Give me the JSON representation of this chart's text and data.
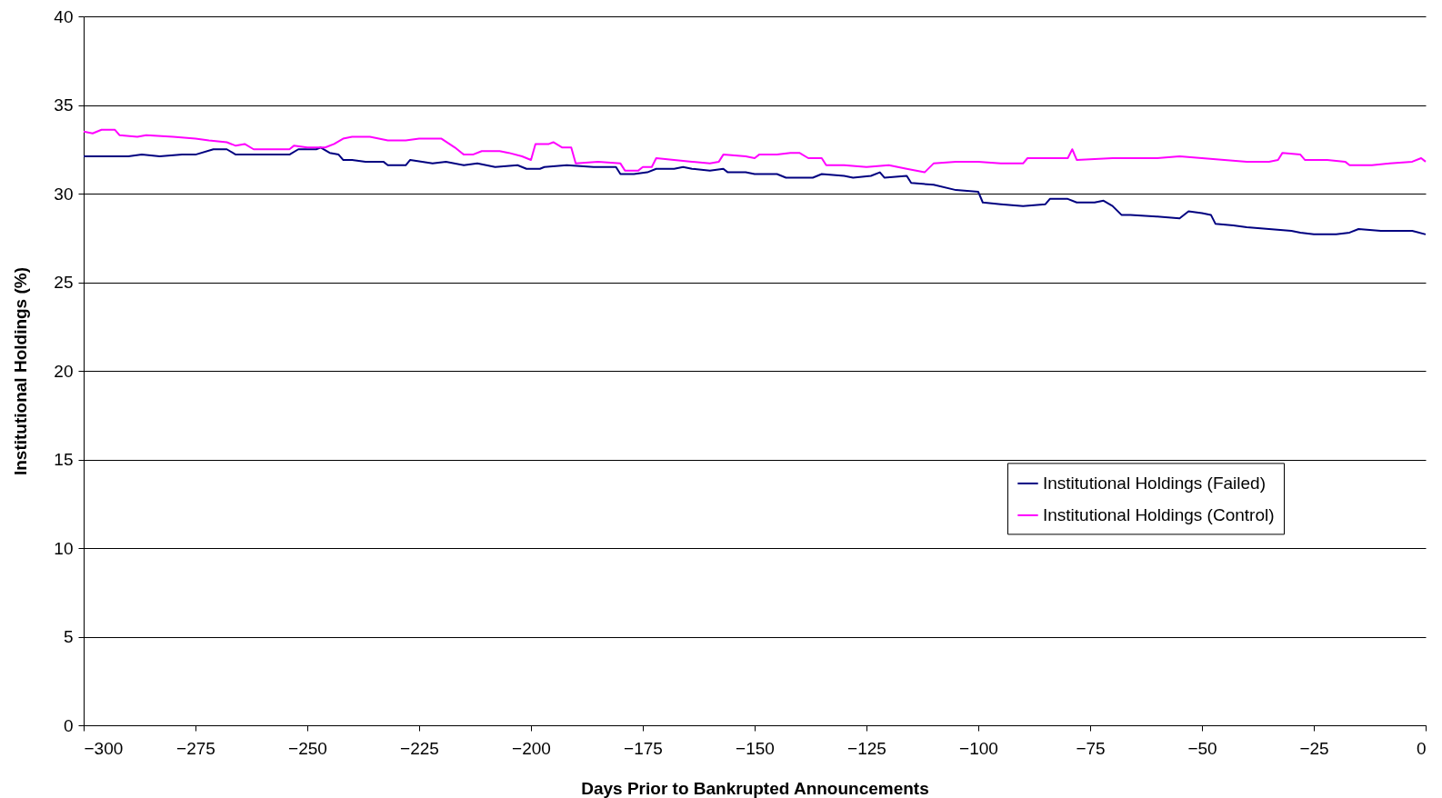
{
  "chart_data": {
    "type": "line",
    "xlabel": "Days Prior to Bankrupted Announcements",
    "ylabel": "Institutional Holdings (%)",
    "xlim": [
      -300,
      0
    ],
    "xticks": [
      -300,
      -275,
      -250,
      -225,
      -200,
      -175,
      -150,
      -125,
      -100,
      -75,
      -50,
      -25,
      0
    ],
    "ylim": [
      0,
      40
    ],
    "yticks": [
      0,
      5,
      10,
      15,
      20,
      25,
      30,
      35,
      40
    ],
    "grid": "y",
    "legend": "right",
    "marker": "none",
    "line_style": "solid",
    "series": [
      {
        "name": "Institutional Holdings (Failed)",
        "color": "#000080",
        "x": [
          -300,
          -295,
          -290,
          -287,
          -283,
          -278,
          -275,
          -271,
          -268,
          -266,
          -262,
          -258,
          -254,
          -252,
          -248,
          -247,
          -245,
          -243,
          -242,
          -240,
          -237,
          -233,
          -232,
          -228,
          -227,
          -222,
          -219,
          -215,
          -212,
          -208,
          -203,
          -201,
          -198,
          -197,
          -192,
          -186,
          -181,
          -180,
          -177,
          -174,
          -172,
          -168,
          -166,
          -164,
          -160,
          -157,
          -156,
          -152,
          -150,
          -145,
          -143,
          -137,
          -135,
          -130,
          -128,
          -124,
          -122,
          -121,
          -116,
          -115,
          -110,
          -105,
          -100,
          -99,
          -95,
          -90,
          -85,
          -84,
          -80,
          -78,
          -74,
          -72,
          -70,
          -68,
          -66,
          -60,
          -55,
          -53,
          -50,
          -48,
          -47,
          -43,
          -40,
          -35,
          -30,
          -28,
          -25,
          -20,
          -17,
          -15,
          -10,
          -5,
          -3,
          0
        ],
        "values": [
          32.1,
          32.1,
          32.1,
          32.2,
          32.1,
          32.2,
          32.2,
          32.5,
          32.5,
          32.2,
          32.2,
          32.2,
          32.2,
          32.5,
          32.5,
          32.6,
          32.3,
          32.2,
          31.9,
          31.9,
          31.8,
          31.8,
          31.6,
          31.6,
          31.9,
          31.7,
          31.8,
          31.6,
          31.7,
          31.5,
          31.6,
          31.4,
          31.4,
          31.5,
          31.6,
          31.5,
          31.5,
          31.1,
          31.1,
          31.2,
          31.4,
          31.4,
          31.5,
          31.4,
          31.3,
          31.4,
          31.2,
          31.2,
          31.1,
          31.1,
          30.9,
          30.9,
          31.1,
          31.0,
          30.9,
          31.0,
          31.2,
          30.9,
          31.0,
          30.6,
          30.5,
          30.2,
          30.1,
          29.5,
          29.4,
          29.3,
          29.4,
          29.7,
          29.7,
          29.5,
          29.5,
          29.6,
          29.3,
          28.8,
          28.8,
          28.7,
          28.6,
          29.0,
          28.9,
          28.8,
          28.3,
          28.2,
          28.1,
          28.0,
          27.9,
          27.8,
          27.7,
          27.7,
          27.8,
          28.0,
          27.9,
          27.9,
          27.9,
          27.7
        ]
      },
      {
        "name": "Institutional Holdings (Control)",
        "color": "#ff00ff",
        "x": [
          -300,
          -298,
          -296,
          -293,
          -292,
          -288,
          -286,
          -280,
          -275,
          -272,
          -268,
          -266,
          -264,
          -262,
          -258,
          -254,
          -253,
          -250,
          -246,
          -244,
          -242,
          -240,
          -236,
          -232,
          -228,
          -225,
          -220,
          -217,
          -215,
          -213,
          -211,
          -207,
          -205,
          -202,
          -200,
          -199,
          -196,
          -195,
          -193,
          -191,
          -190,
          -185,
          -180,
          -179,
          -176,
          -175,
          -173,
          -172,
          -168,
          -164,
          -160,
          -158,
          -157,
          -152,
          -150,
          -149,
          -145,
          -142,
          -140,
          -138,
          -135,
          -134,
          -130,
          -125,
          -120,
          -116,
          -112,
          -110,
          -105,
          -100,
          -95,
          -90,
          -89,
          -85,
          -80,
          -79,
          -78,
          -70,
          -60,
          -55,
          -50,
          -45,
          -40,
          -35,
          -33,
          -32,
          -28,
          -27,
          -22,
          -18,
          -17,
          -12,
          -8,
          -3,
          -1,
          0
        ],
        "values": [
          33.5,
          33.4,
          33.6,
          33.6,
          33.3,
          33.2,
          33.3,
          33.2,
          33.1,
          33.0,
          32.9,
          32.7,
          32.8,
          32.5,
          32.5,
          32.5,
          32.7,
          32.6,
          32.6,
          32.8,
          33.1,
          33.2,
          33.2,
          33.0,
          33.0,
          33.1,
          33.1,
          32.6,
          32.2,
          32.2,
          32.4,
          32.4,
          32.3,
          32.1,
          31.9,
          32.8,
          32.8,
          32.9,
          32.6,
          32.6,
          31.7,
          31.8,
          31.7,
          31.3,
          31.3,
          31.5,
          31.5,
          32.0,
          31.9,
          31.8,
          31.7,
          31.8,
          32.2,
          32.1,
          32.0,
          32.2,
          32.2,
          32.3,
          32.3,
          32.0,
          32.0,
          31.6,
          31.6,
          31.5,
          31.6,
          31.4,
          31.2,
          31.7,
          31.8,
          31.8,
          31.7,
          31.7,
          32.0,
          32.0,
          32.0,
          32.5,
          31.9,
          32.0,
          32.0,
          32.1,
          32.0,
          31.9,
          31.8,
          31.8,
          31.9,
          32.3,
          32.2,
          31.9,
          31.9,
          31.8,
          31.6,
          31.6,
          31.7,
          31.8,
          32.0,
          31.8
        ]
      }
    ]
  }
}
